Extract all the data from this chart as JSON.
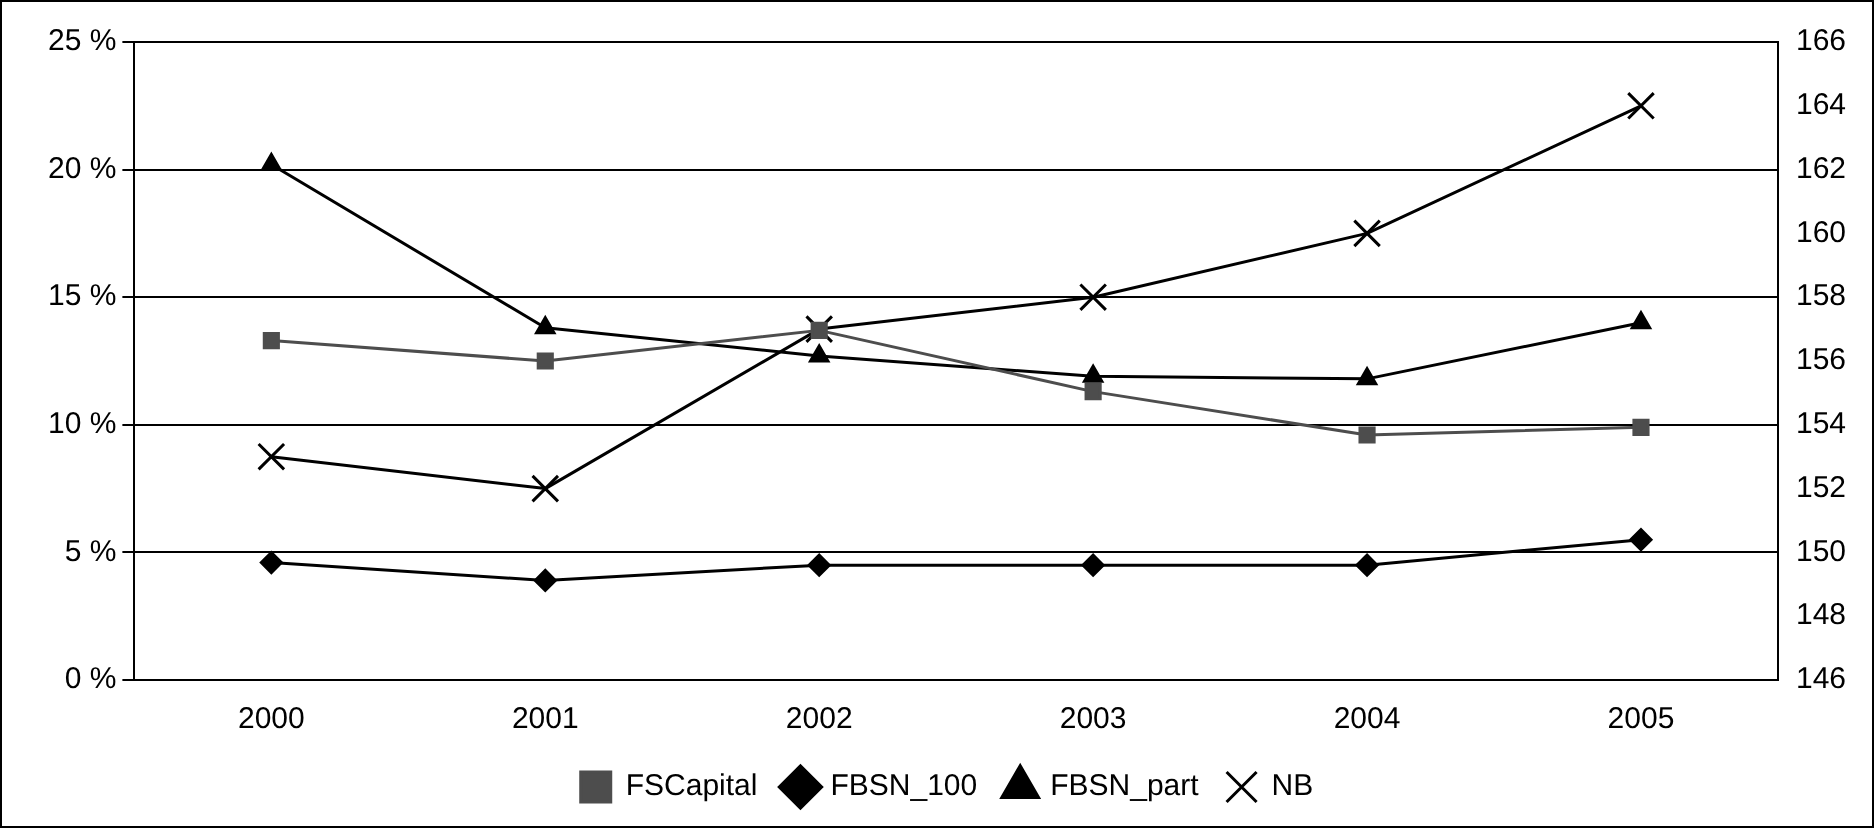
{
  "chart_data": {
    "type": "line",
    "categories": [
      "2000",
      "2001",
      "2002",
      "2003",
      "2004",
      "2005"
    ],
    "series": [
      {
        "name": "FSCapital",
        "color": "#4d4d4d",
        "marker": "square",
        "values": [
          13.3,
          12.5,
          13.7,
          11.3,
          9.6,
          9.9
        ]
      },
      {
        "name": "FBSN_100",
        "color": "#000000",
        "marker": "diamond",
        "values": [
          4.6,
          3.9,
          4.5,
          4.5,
          4.5,
          5.5
        ]
      },
      {
        "name": "FBSN_part",
        "color": "#000000",
        "marker": "triangle",
        "values": [
          20.2,
          13.8,
          12.7,
          11.9,
          11.8,
          14.0
        ]
      },
      {
        "name": "NB",
        "color": "#000000",
        "marker": "cross",
        "axis": "y2",
        "values": [
          153,
          152,
          157,
          158,
          160,
          164
        ]
      }
    ],
    "ylim": [
      0,
      25
    ],
    "yticks": [
      {
        "value": 0,
        "label": "0 %"
      },
      {
        "value": 5,
        "label": "5 %"
      },
      {
        "value": 10,
        "label": "10 %"
      },
      {
        "value": 15,
        "label": "15 %"
      },
      {
        "value": 20,
        "label": "20 %"
      },
      {
        "value": 25,
        "label": "25 %"
      }
    ],
    "y2lim": [
      146,
      166
    ],
    "y2ticks": [
      146,
      148,
      150,
      152,
      154,
      156,
      158,
      160,
      162,
      164,
      166
    ],
    "grid": "y",
    "legend": "bottom",
    "line_style": "solid"
  }
}
